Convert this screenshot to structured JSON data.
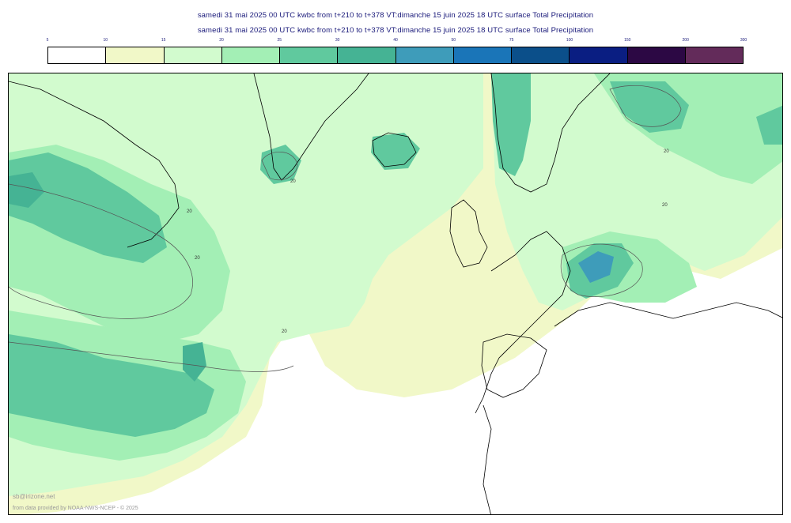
{
  "header": {
    "title_line1": "samedi 31 mai 2025 00 UTC kwbc from t+210 to t+378 VT:dimanche 15 juin 2025 18 UTC surface  Total Precipitation",
    "title_line2": "samedi 31 mai 2025 00 UTC kwbc from t+210 to t+378 VT:dimanche 15 juin 2025 18 UTC surface  Total Precipitation"
  },
  "legend": {
    "ticks": [
      "5",
      "10",
      "15",
      "20",
      "25",
      "30",
      "40",
      "50",
      "75",
      "100",
      "150",
      "200",
      "300"
    ],
    "colors": [
      "#ffffff",
      "#f1f8c8",
      "#d2fbce",
      "#a3efb5",
      "#60c99e",
      "#45b394",
      "#3e9cba",
      "#1a75b8",
      "#0b4f8a",
      "#0a1e82",
      "#2c0844",
      "#632b5a"
    ]
  },
  "map": {
    "contour_labels": [
      "20",
      "20",
      "20",
      "20",
      "20",
      "20"
    ]
  },
  "footer": {
    "credit_site": "sb@irizone.net",
    "credit_source": "from data provided by NOAA-NWS-NCEP - © 2025"
  }
}
